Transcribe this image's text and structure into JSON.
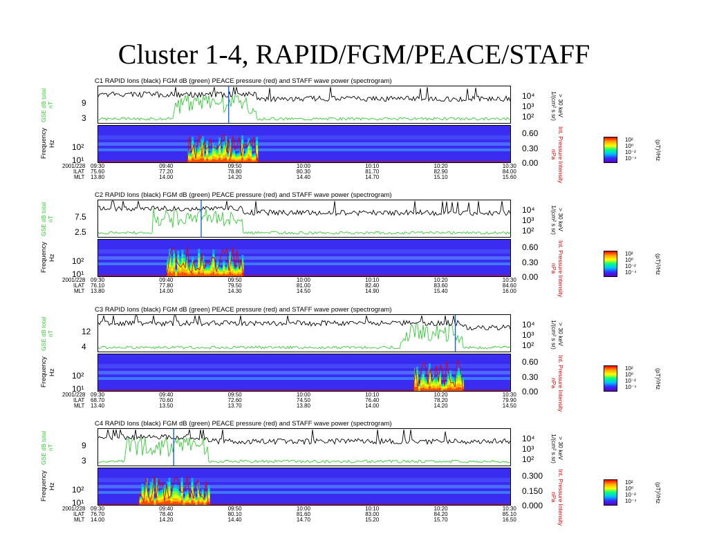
{
  "slide_title": "Cluster 1-4, RAPID/FGM/PEACE/STAFF",
  "chart_data": [
    {
      "type": "line",
      "title": "C1 RAPID Ions (black) FGM dB (green) PEACE pressure (red) and STAFF wave power (spectrogram)",
      "left_ylabel": [
        "GSE dB total",
        "nT"
      ],
      "left_yticks": [
        "9",
        "3"
      ],
      "right_ylabel": [
        "> 30 keV",
        "1/(cm² s sr)"
      ],
      "right_yticks": [
        "10⁴",
        "10³",
        "10²"
      ],
      "spec_ylabel": [
        "Frequency",
        "Hz"
      ],
      "spec_yticks": [
        "10²",
        "10¹"
      ],
      "pressure_label": [
        "Int. Pressure Intensity",
        "nPa"
      ],
      "pressure_ticks": [
        "0.60",
        "0.30",
        "0.00"
      ],
      "row_labels": [
        "2001/228",
        "ILAT",
        "MLT"
      ],
      "x_ticks": [
        "09:30",
        "09:40",
        "09:50",
        "10:00",
        "10:10",
        "10:20",
        "10:30"
      ],
      "ilat": [
        "75.60",
        "77.20",
        "78.80",
        "80.30",
        "81.70",
        "82.90",
        "84.00"
      ],
      "mlt": [
        "13.80",
        "14.00",
        "14.20",
        "14.40",
        "14.70",
        "15.10",
        "15.60"
      ],
      "colorbar_ticks": [
        "10²",
        "10⁰",
        "10⁻²",
        "10⁻⁴"
      ],
      "colorbar_unit": "(pT)²/Hz",
      "event_time": "09:49",
      "active_window": [
        "09:43",
        "09:53"
      ]
    },
    {
      "type": "line",
      "title": "C2 RAPID Ions (black) FGM dB (green) PEACE pressure (red) and STAFF wave power (spectrogram)",
      "left_ylabel": [
        "GSE dB total",
        "nT"
      ],
      "left_yticks": [
        "7.5",
        "2.5"
      ],
      "right_ylabel": [
        "> 30 keV",
        "1/(cm² s sr)"
      ],
      "right_yticks": [
        "10⁴",
        "10³",
        "10²"
      ],
      "spec_ylabel": [
        "Frequency",
        "Hz"
      ],
      "spec_yticks": [
        "10²",
        "10¹"
      ],
      "pressure_label": [
        "Int. Pressure Intensity",
        "nPa"
      ],
      "pressure_ticks": [
        "0.60",
        "0.30",
        "0.00"
      ],
      "row_labels": [
        "2001/228",
        "ILAT",
        "MLT"
      ],
      "x_ticks": [
        "09:30",
        "09:40",
        "09:50",
        "10:00",
        "10:10",
        "10:20",
        "10:30"
      ],
      "ilat": [
        "76.10",
        "77.80",
        "79.50",
        "81.00",
        "82.40",
        "83.60",
        "84.60"
      ],
      "mlt": [
        "13.80",
        "14.00",
        "14.30",
        "14.50",
        "14.90",
        "15.40",
        "16.00"
      ],
      "colorbar_ticks": [
        "10²",
        "10⁰",
        "10⁻²",
        "10⁻⁴"
      ],
      "colorbar_unit": "(pT)²/Hz",
      "event_time": "09:45",
      "active_window": [
        "09:40",
        "09:51"
      ]
    },
    {
      "type": "line",
      "title": "C3 RAPID Ions (black) FGM dB (green) PEACE pressure (red) and STAFF wave power (spectrogram)",
      "left_ylabel": [
        "GSE dB total",
        "nT"
      ],
      "left_yticks": [
        "12",
        "4"
      ],
      "right_ylabel": [
        "> 30 keV",
        "1/(cm² s sr)"
      ],
      "right_yticks": [
        "10⁴",
        "10³",
        "10²"
      ],
      "spec_ylabel": [
        "Frequency",
        "Hz"
      ],
      "spec_yticks": [
        "10²",
        "10¹"
      ],
      "pressure_label": [
        "Int. Pressure Intensity",
        "nPa"
      ],
      "pressure_ticks": [
        "0.60",
        "0.30",
        "0.00"
      ],
      "row_labels": [
        "2001/228",
        "ILAT",
        "MLT"
      ],
      "x_ticks": [
        "09:30",
        "09:40",
        "09:50",
        "10:00",
        "10:10",
        "10:20",
        "10:30"
      ],
      "ilat": [
        "68.70",
        "70.60",
        "72.60",
        "74.50",
        "76.40",
        "78.20",
        "79.90"
      ],
      "mlt": [
        "13.40",
        "13.50",
        "13.70",
        "13.80",
        "14.00",
        "14.20",
        "14.50"
      ],
      "colorbar_ticks": [
        "10²",
        "10⁰",
        "10⁻²",
        "10⁻⁴"
      ],
      "colorbar_unit": "(pT)²/Hz",
      "event_time": "10:22",
      "active_window": [
        "10:16",
        "10:23"
      ]
    },
    {
      "type": "line",
      "title": "C4 RAPID Ions (black) FGM dB (green) PEACE pressure (red) and STAFF wave power (spectrogram)",
      "left_ylabel": [
        "GSE dB total",
        "nT"
      ],
      "left_yticks": [
        "9",
        "3"
      ],
      "right_ylabel": [
        "> 30 keV",
        "1/(cm² s sr)"
      ],
      "right_yticks": [
        "10⁴",
        "10³",
        "10²"
      ],
      "spec_ylabel": [
        "Frequency",
        "Hz"
      ],
      "spec_yticks": [
        "10²",
        "10¹"
      ],
      "pressure_label": [
        "Int. Pressure Intensity",
        "nPa"
      ],
      "pressure_ticks": [
        "0.300",
        "0.150",
        "0.000"
      ],
      "row_labels": [
        "2001/228",
        "ILAT",
        "MLT"
      ],
      "x_ticks": [
        "09:30",
        "09:40",
        "09:50",
        "10:00",
        "10:10",
        "10:20",
        "10:30"
      ],
      "ilat": [
        "76.70",
        "78.40",
        "80.10",
        "81.60",
        "83.00",
        "84.20",
        "85.10"
      ],
      "mlt": [
        "14.00",
        "14.20",
        "14.40",
        "14.70",
        "15.20",
        "15.70",
        "16.50"
      ],
      "colorbar_ticks": [
        "10²",
        "10⁰",
        "10⁻²",
        "10⁻⁴"
      ],
      "colorbar_unit": "(pT)²/Hz",
      "event_time": "09:41",
      "active_window": [
        "09:36",
        "09:46"
      ]
    }
  ]
}
